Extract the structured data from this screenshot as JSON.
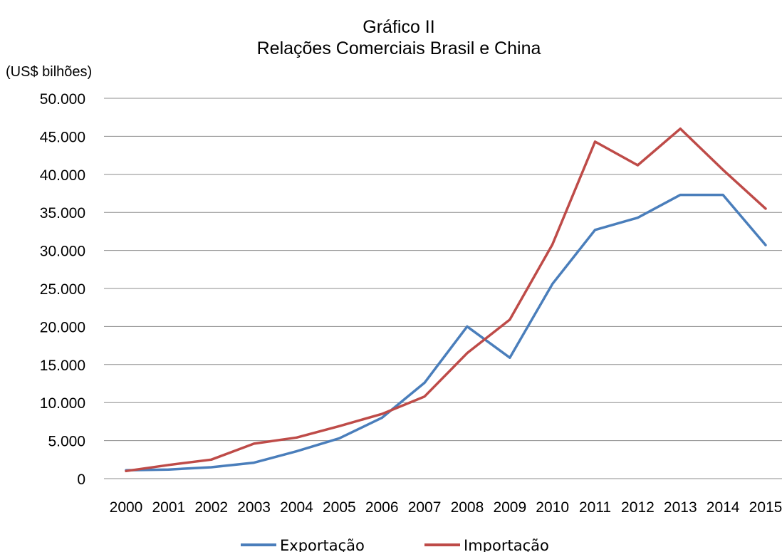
{
  "chart_data": {
    "type": "line",
    "title": "Gráfico II",
    "subtitle": "Relações Comerciais Brasil e China",
    "ylabel": "(US$ bilhões)",
    "xlabel": "",
    "ylim": [
      0,
      50000
    ],
    "yticks": [
      "0",
      "5.000",
      "10.000",
      "15.000",
      "20.000",
      "25.000",
      "30.000",
      "35.000",
      "40.000",
      "45.000",
      "50.000"
    ],
    "ytick_values": [
      0,
      5000,
      10000,
      15000,
      20000,
      25000,
      30000,
      35000,
      40000,
      45000,
      50000
    ],
    "categories": [
      "2000",
      "2001",
      "2002",
      "2003",
      "2004",
      "2005",
      "2006",
      "2007",
      "2008",
      "2009",
      "2010",
      "2011",
      "2012",
      "2013",
      "2014",
      "2015"
    ],
    "grid": true,
    "legend_position": "bottom",
    "series": [
      {
        "name": "Exportação",
        "color": "#4a7ebb",
        "values": [
          1100,
          1200,
          1500,
          2100,
          3600,
          5300,
          8000,
          12600,
          20000,
          15900,
          25600,
          32700,
          34300,
          37300,
          37300,
          30700
        ]
      },
      {
        "name": "Importação",
        "color": "#be4b48",
        "values": [
          1000,
          1800,
          2500,
          4600,
          5400,
          6900,
          8500,
          10800,
          16500,
          20900,
          30800,
          44300,
          41200,
          46000,
          40600,
          35500
        ]
      }
    ]
  }
}
